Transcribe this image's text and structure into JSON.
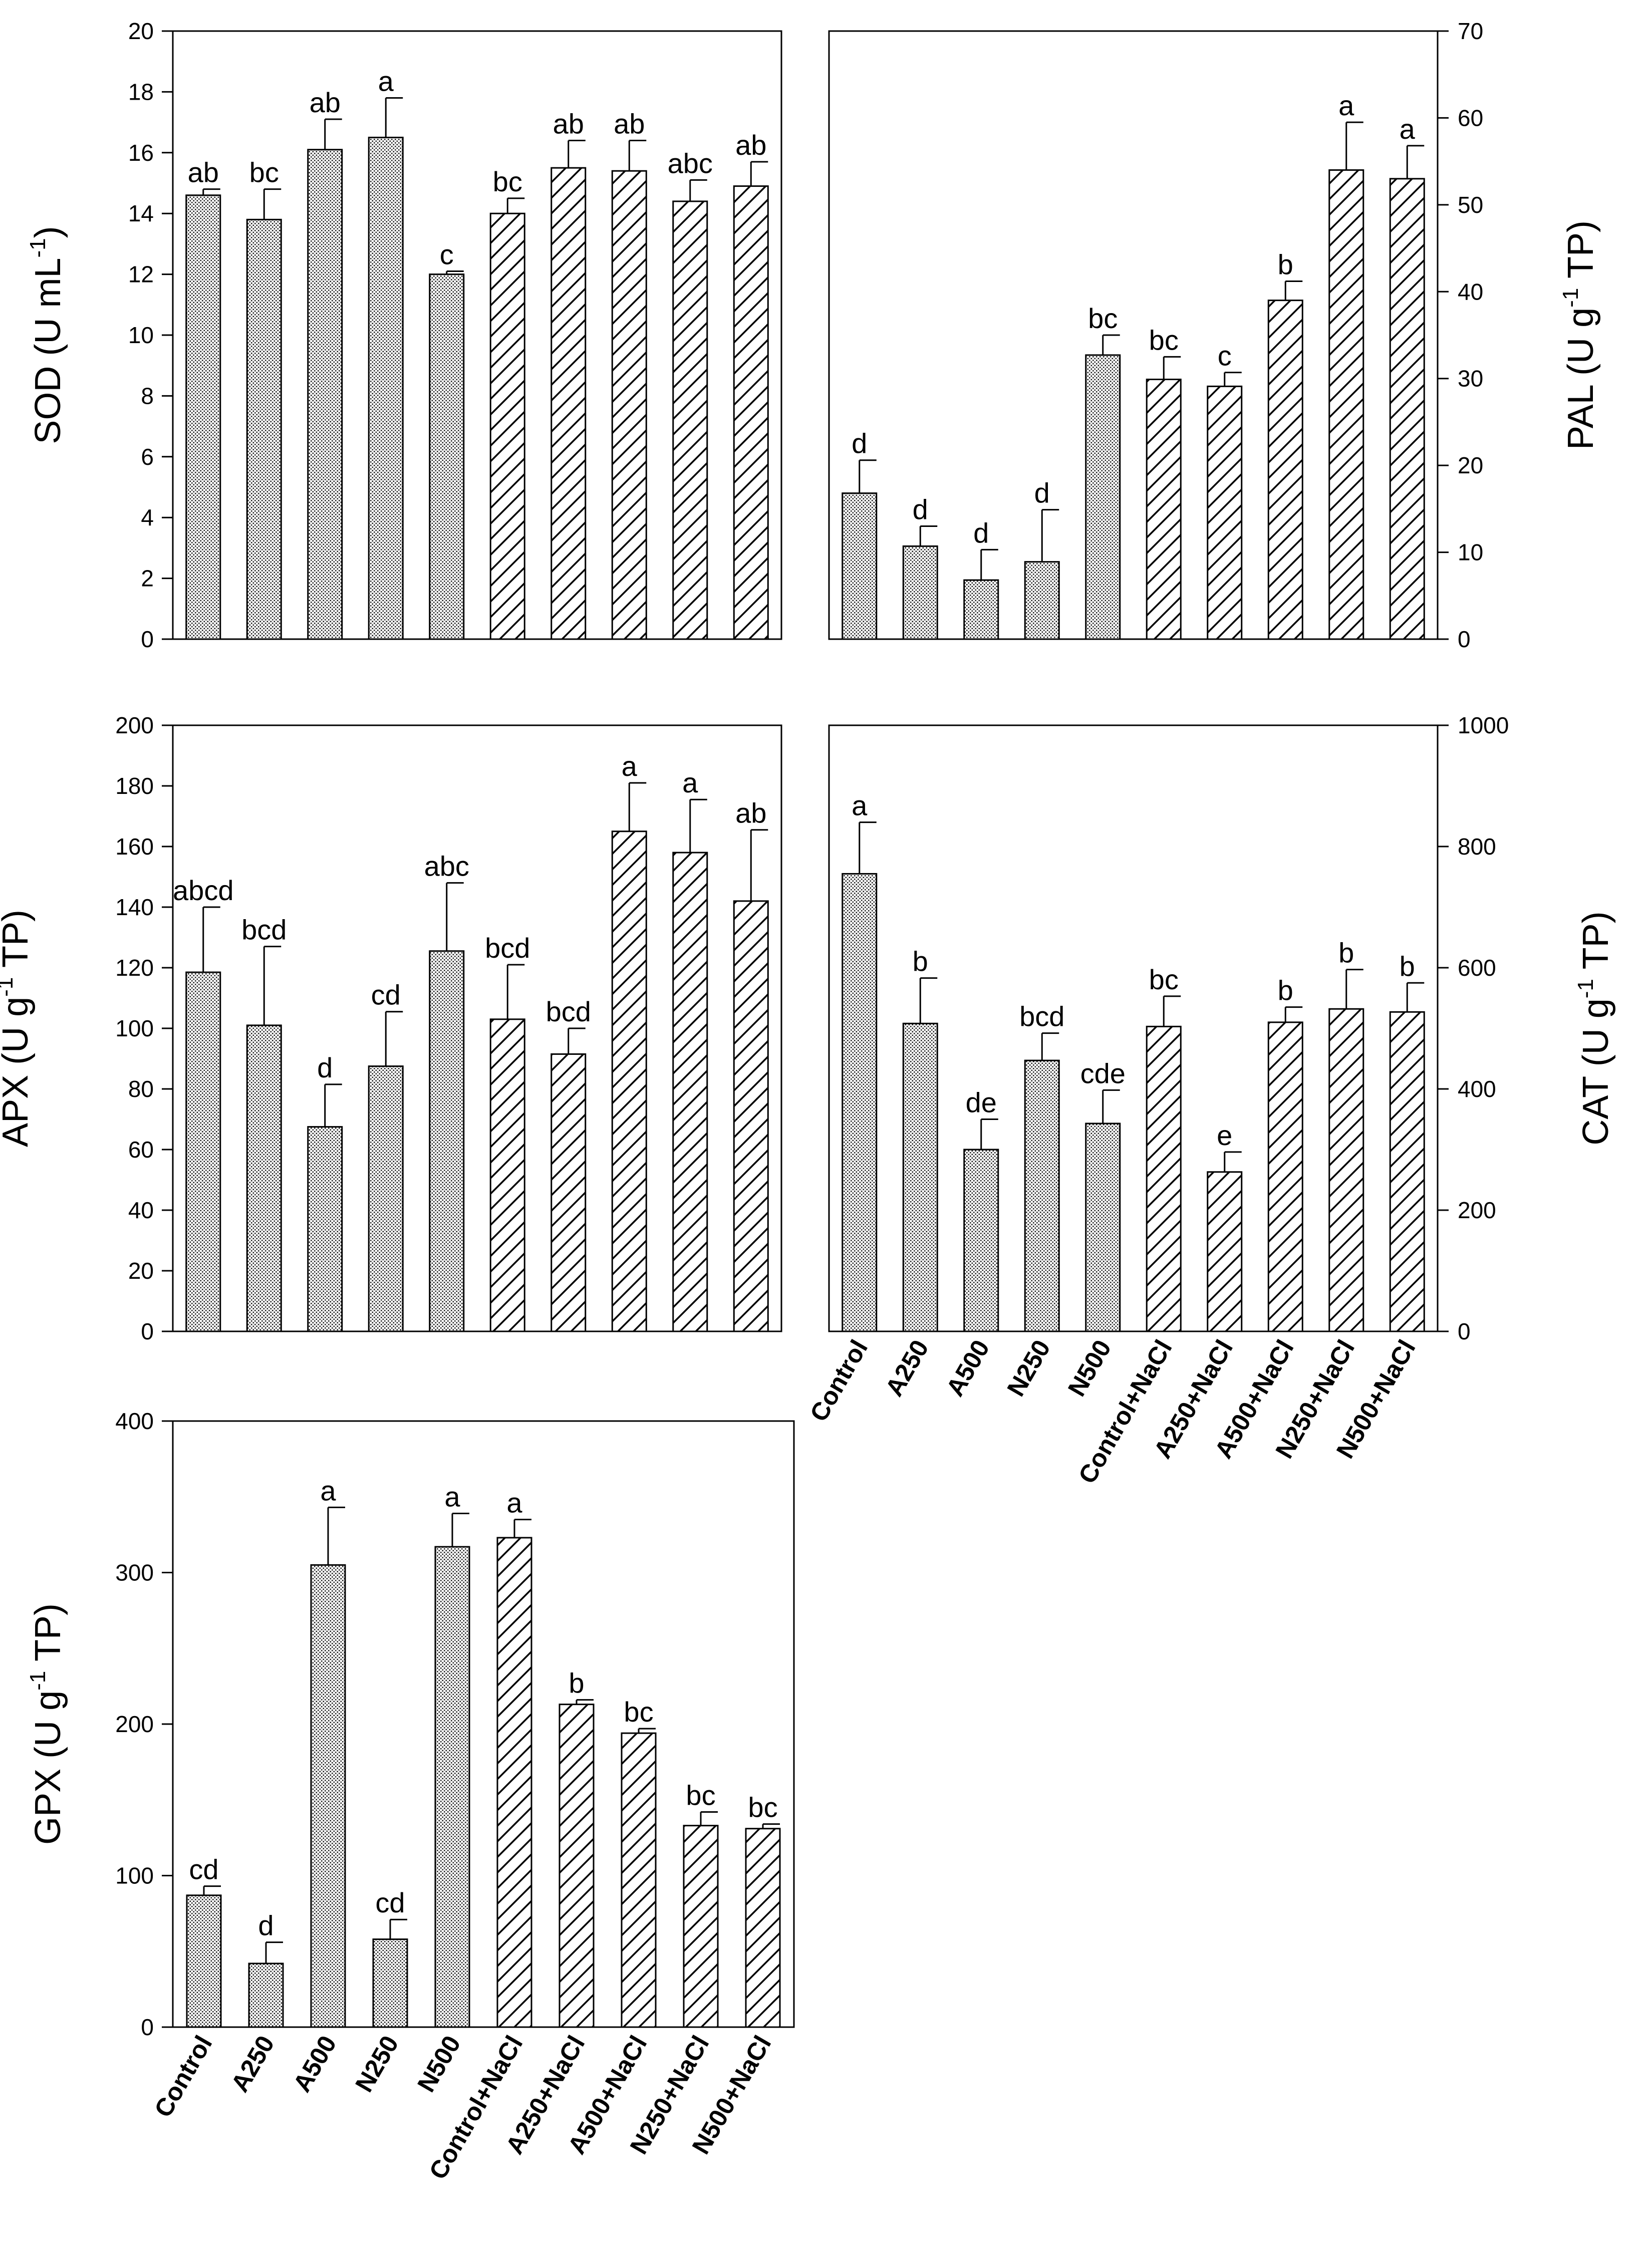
{
  "colors": {
    "ink": "#000000",
    "background": "#ffffff"
  },
  "chart_data": [
    {
      "id": "sod",
      "type": "bar",
      "yaxis_side": "left",
      "ylabel": "SOD (U mL",
      "ylabel_sup": "-1",
      "ylabel_end": ")",
      "ylim": [
        0,
        20
      ],
      "yticks": [
        0,
        2,
        4,
        6,
        8,
        10,
        12,
        14,
        16,
        18,
        20
      ],
      "categories": [
        "Control",
        "A250",
        "A500",
        "N250",
        "N500",
        "Control+NaCl",
        "A250+NaCl",
        "A500+NaCl",
        "N250+NaCl",
        "N500+NaCl"
      ],
      "patterns": [
        "dots",
        "dots",
        "dots",
        "dots",
        "dots",
        "hatch",
        "hatch",
        "hatch",
        "hatch",
        "hatch"
      ],
      "values": [
        14.6,
        13.8,
        16.1,
        16.5,
        12.0,
        14.0,
        15.5,
        15.4,
        14.4,
        14.9
      ],
      "errors": [
        0.2,
        1.0,
        1.0,
        1.3,
        0.1,
        0.5,
        0.9,
        1.0,
        0.7,
        0.8
      ],
      "letters": [
        "ab",
        "bc",
        "ab",
        "a",
        "c",
        "bc",
        "ab",
        "ab",
        "abc",
        "ab"
      ],
      "show_category_labels": false
    },
    {
      "id": "pal",
      "type": "bar",
      "yaxis_side": "right",
      "ylabel": "PAL (U g",
      "ylabel_sup": "-1",
      "ylabel_end": " TP)",
      "ylim": [
        0,
        70
      ],
      "yticks": [
        0,
        10,
        20,
        30,
        40,
        50,
        60,
        70
      ],
      "categories": [
        "Control",
        "A250",
        "A500",
        "N250",
        "N500",
        "Control+NaCl",
        "A250+NaCl",
        "A500+NaCl",
        "N250+NaCl",
        "N500+NaCl"
      ],
      "patterns": [
        "dots",
        "dots",
        "dots",
        "dots",
        "dots",
        "hatch",
        "hatch",
        "hatch",
        "hatch",
        "hatch"
      ],
      "values": [
        16.8,
        10.7,
        6.8,
        8.9,
        32.7,
        29.9,
        29.1,
        39.0,
        54.0,
        53.0
      ],
      "errors": [
        3.8,
        2.3,
        3.5,
        6.0,
        2.3,
        2.6,
        1.6,
        2.2,
        5.5,
        3.8
      ],
      "letters": [
        "d",
        "d",
        "d",
        "d",
        "bc",
        "bc",
        "c",
        "b",
        "a",
        "a"
      ],
      "show_category_labels": false
    },
    {
      "id": "apx",
      "type": "bar",
      "yaxis_side": "left",
      "ylabel": "APX (U g",
      "ylabel_sup": "-1",
      "ylabel_end": " TP)",
      "ylim": [
        0,
        200
      ],
      "yticks": [
        0,
        20,
        40,
        60,
        80,
        100,
        120,
        140,
        160,
        180,
        200
      ],
      "categories": [
        "Control",
        "A250",
        "A500",
        "N250",
        "N500",
        "Control+NaCl",
        "A250+NaCl",
        "A500+NaCl",
        "N250+NaCl",
        "N500+NaCl"
      ],
      "patterns": [
        "dots",
        "dots",
        "dots",
        "dots",
        "dots",
        "hatch",
        "hatch",
        "hatch",
        "hatch",
        "hatch"
      ],
      "values": [
        118.5,
        101.0,
        67.5,
        87.5,
        125.5,
        103.0,
        91.5,
        165.0,
        158.0,
        142.0
      ],
      "errors": [
        21.5,
        26.0,
        14.0,
        18.0,
        22.5,
        18.0,
        8.5,
        16.0,
        17.5,
        23.5
      ],
      "letters": [
        "abcd",
        "bcd",
        "d",
        "cd",
        "abc",
        "bcd",
        "bcd",
        "a",
        "a",
        "ab"
      ],
      "show_category_labels": false
    },
    {
      "id": "cat",
      "type": "bar",
      "yaxis_side": "right",
      "ylabel": "CAT (U g",
      "ylabel_sup": "-1",
      "ylabel_end": " TP)",
      "ylim": [
        0,
        1000
      ],
      "yticks": [
        0,
        200,
        400,
        600,
        800,
        1000
      ],
      "categories": [
        "Control",
        "A250",
        "A500",
        "N250",
        "N500",
        "Control+NaCl",
        "A250+NaCl",
        "A500+NaCl",
        "N250+NaCl",
        "N500+NaCl"
      ],
      "patterns": [
        "dots",
        "dots",
        "dots",
        "dots",
        "dots",
        "hatch",
        "hatch",
        "hatch",
        "hatch",
        "hatch"
      ],
      "values": [
        755,
        508,
        300,
        447,
        343,
        503,
        263,
        510,
        532,
        527
      ],
      "errors": [
        85,
        75,
        50,
        45,
        55,
        50,
        33,
        25,
        65,
        48
      ],
      "letters": [
        "a",
        "b",
        "de",
        "bcd",
        "cde",
        "bc",
        "e",
        "b",
        "b",
        "b"
      ],
      "show_category_labels": true
    },
    {
      "id": "gpx",
      "type": "bar",
      "yaxis_side": "left",
      "ylabel": "GPX (U g",
      "ylabel_sup": "-1",
      "ylabel_end": " TP)",
      "ylim": [
        0,
        400
      ],
      "yticks": [
        0,
        100,
        200,
        300,
        400
      ],
      "categories": [
        "Control",
        "A250",
        "A500",
        "N250",
        "N500",
        "Control+NaCl",
        "A250+NaCl",
        "A500+NaCl",
        "N250+NaCl",
        "N500+NaCl"
      ],
      "patterns": [
        "dots",
        "dots",
        "dots",
        "dots",
        "dots",
        "hatch",
        "hatch",
        "hatch",
        "hatch",
        "hatch"
      ],
      "values": [
        87,
        42,
        305,
        58,
        317,
        323,
        213,
        194,
        133,
        131
      ],
      "errors": [
        6,
        14,
        38,
        13,
        22,
        12,
        3,
        3,
        9,
        3
      ],
      "letters": [
        "cd",
        "d",
        "a",
        "cd",
        "a",
        "a",
        "b",
        "bc",
        "bc",
        "bc"
      ],
      "show_category_labels": true
    }
  ]
}
